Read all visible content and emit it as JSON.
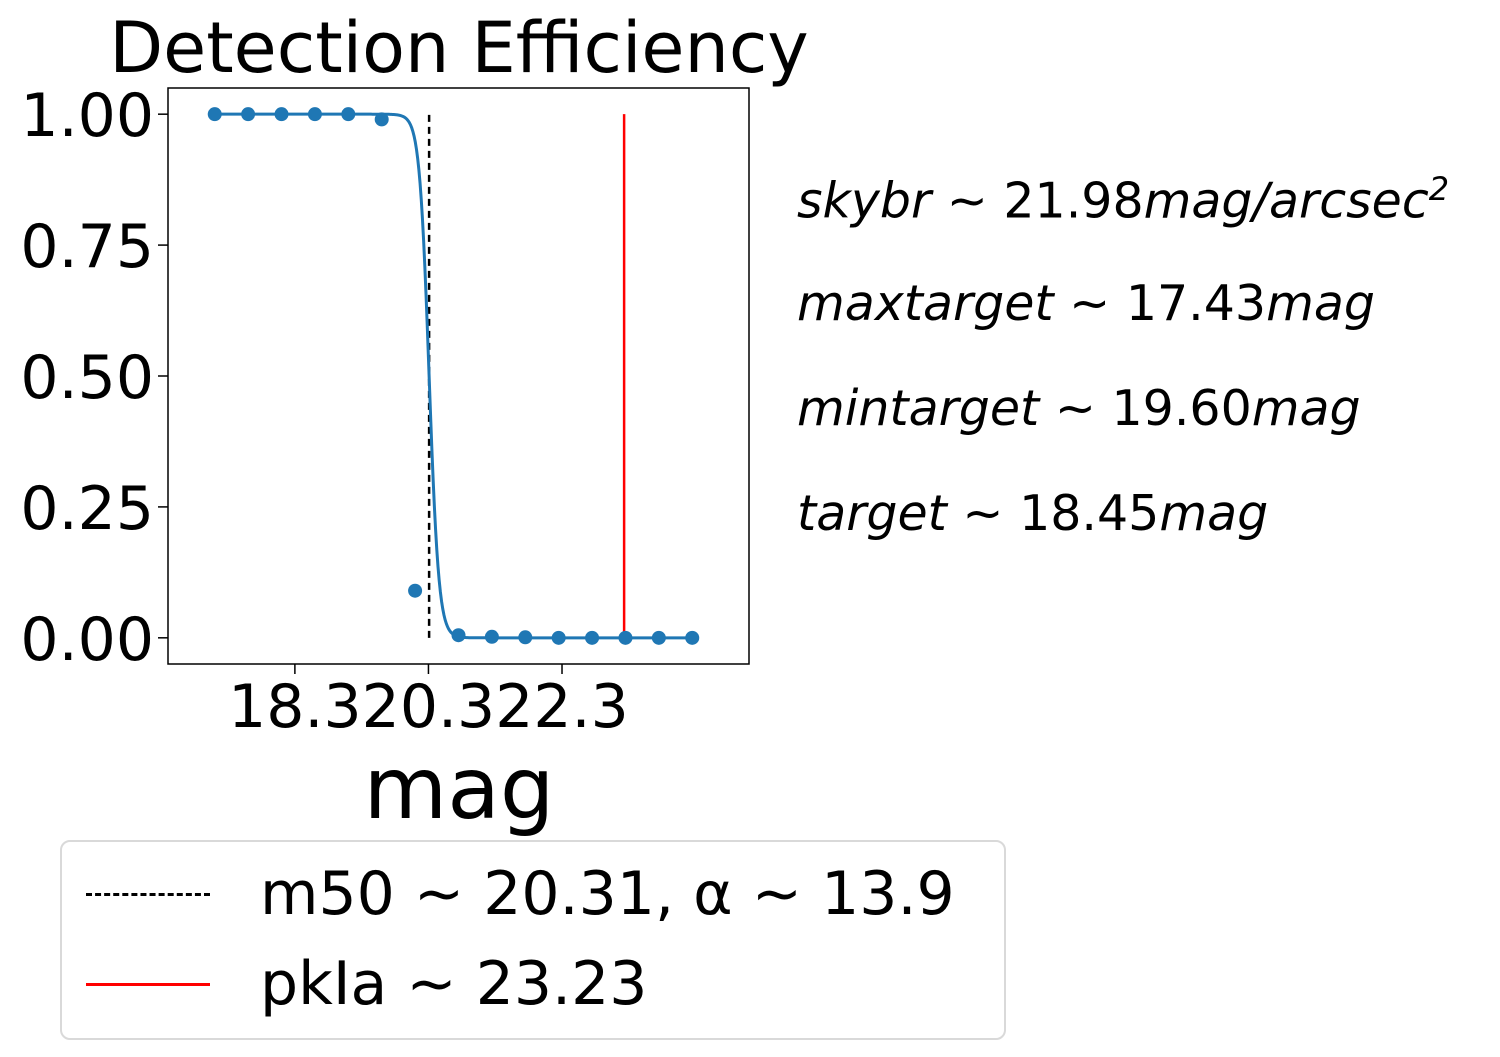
{
  "chart_data": {
    "type": "line",
    "title": "Detection Efficiency",
    "xlabel": "mag",
    "ylabel": "",
    "xlim": [
      16.4,
      25.1
    ],
    "ylim": [
      -0.05,
      1.05
    ],
    "xticks": [
      18.3,
      20.3,
      22.3
    ],
    "xtick_labels": [
      "18.3",
      "20.3",
      "22.3"
    ],
    "yticks": [
      0.0,
      0.25,
      0.5,
      0.75,
      1.0
    ],
    "ytick_labels": [
      "0.00",
      "0.25",
      "0.50",
      "0.75",
      "1.00"
    ],
    "series": [
      {
        "kind": "scatter",
        "color": "#1f77b4",
        "x": [
          17.1,
          17.6,
          18.1,
          18.6,
          19.1,
          19.6,
          20.1,
          20.75,
          21.25,
          21.75,
          22.25,
          22.75,
          23.25,
          23.75,
          24.25
        ],
        "y": [
          1.0,
          1.0,
          1.0,
          1.0,
          1.0,
          0.99,
          0.09,
          0.005,
          0.002,
          0.001,
          0.0,
          0.0,
          0.0,
          0.0,
          0.0
        ]
      },
      {
        "kind": "fit",
        "color": "#1f77b4",
        "m50": 20.31,
        "alpha": 13.9,
        "x_range": [
          17.1,
          24.25
        ]
      },
      {
        "name": "m50 ~ 20.31, α ~ 13.9",
        "kind": "vline",
        "color": "#000000",
        "style": "dashed",
        "x": 20.31,
        "y_range": [
          0,
          1
        ]
      },
      {
        "name": "pkIa ~ 23.23",
        "kind": "vline",
        "color": "#ff0000",
        "style": "solid",
        "x": 23.23,
        "y_range": [
          0,
          1
        ]
      }
    ],
    "legend": {
      "position": "bottom-left",
      "entries": [
        "m50 ~ 20.31, α ~ 13.9",
        "pkIa ~ 23.23"
      ]
    },
    "annotations": [
      {
        "label": "skybr",
        "op": " ~ ",
        "value": "21.98",
        "unit": "mag/arcsec",
        "sup": "2"
      },
      {
        "label": "maxtarget",
        "op": " ~ ",
        "value": "17.43",
        "unit": "mag",
        "sup": ""
      },
      {
        "label": "mintarget",
        "op": " ~ ",
        "value": "19.60",
        "unit": "mag",
        "sup": ""
      },
      {
        "label": "target",
        "op": " ~ ",
        "value": "18.45",
        "unit": "mag",
        "sup": ""
      }
    ]
  }
}
